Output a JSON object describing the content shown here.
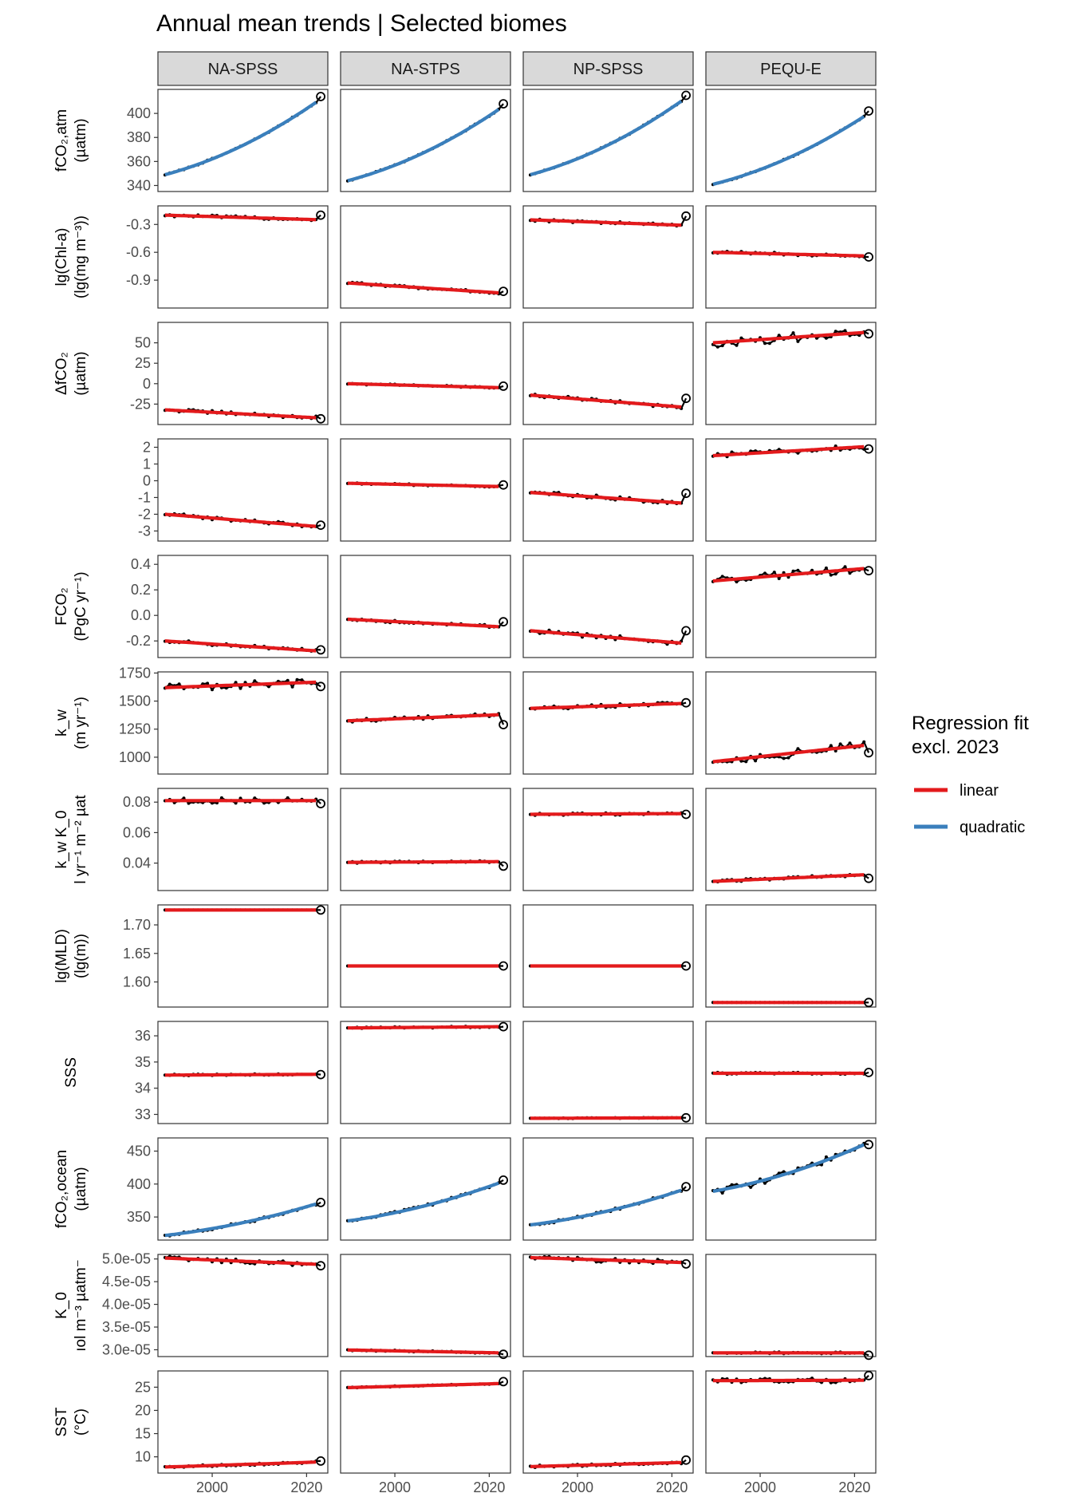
{
  "chart_data": {
    "type": "line",
    "title": "Annual mean trends | Selected biomes",
    "facets": [
      "NA-SPSS",
      "NA-STPS",
      "NP-SPSS",
      "PEQU-E"
    ],
    "x": {
      "range": [
        1988.5,
        2024.5
      ],
      "ticks": [
        2000,
        2020
      ],
      "tick_labels": [
        "2000",
        "2020"
      ]
    },
    "legend": {
      "title_lines": [
        "Regression fit",
        "excl. 2023"
      ],
      "items": [
        {
          "label": "linear",
          "color": "#e31a1c"
        },
        {
          "label": "quadratic",
          "color": "#3a7fbc"
        }
      ],
      "position": "right"
    },
    "colors": {
      "observed": "#000000",
      "linear": "#e31a1c",
      "quadratic": "#3a7fbc",
      "strip_fill": "#d9d9d9"
    },
    "rows": [
      {
        "id": "fco2atm",
        "ylabel_lines": [
          "fCO₂,atm",
          "(µatm)"
        ],
        "ylim": [
          335,
          420
        ],
        "ticks": [
          340,
          360,
          380,
          400
        ],
        "tick_labels": [
          "340",
          "360",
          "380",
          "400"
        ],
        "fit": "quadratic",
        "panels": [
          {
            "start": 349,
            "end": 412,
            "last": 414,
            "noise": 0.5
          },
          {
            "start": 344,
            "end": 406,
            "last": 408,
            "noise": 0.5
          },
          {
            "start": 349,
            "end": 413,
            "last": 415,
            "noise": 0.5
          },
          {
            "start": 341,
            "end": 400,
            "last": 402,
            "noise": 0.5
          }
        ]
      },
      {
        "id": "chla",
        "ylabel_lines": [
          "lg(Chl-a)",
          "(lg(mg m⁻³))"
        ],
        "ylim": [
          -1.2,
          -0.1
        ],
        "ticks": [
          -0.9,
          -0.6,
          -0.3
        ],
        "tick_labels": [
          "-0.9",
          "-0.6",
          "-0.3"
        ],
        "fit": "linear",
        "panels": [
          {
            "start": -0.2,
            "end": -0.25,
            "last": -0.2,
            "noise": 0.015
          },
          {
            "start": -0.93,
            "end": -1.04,
            "last": -1.02,
            "noise": 0.012
          },
          {
            "start": -0.25,
            "end": -0.31,
            "last": -0.21,
            "noise": 0.015
          },
          {
            "start": -0.6,
            "end": -0.64,
            "last": -0.65,
            "noise": 0.015
          }
        ]
      },
      {
        "id": "dfco2",
        "ylabel_lines": [
          "ΔfCO₂",
          "(µatm)"
        ],
        "ylim": [
          -50,
          75
        ],
        "ticks": [
          -25,
          0,
          25,
          50
        ],
        "tick_labels": [
          "-25",
          "0",
          "25",
          "50"
        ],
        "fit": "linear",
        "panels": [
          {
            "start": -32,
            "end": -42,
            "last": -43,
            "noise": 2
          },
          {
            "start": 0,
            "end": -5,
            "last": -3,
            "noise": 1
          },
          {
            "start": -14,
            "end": -29,
            "last": -18,
            "noise": 2
          },
          {
            "start": 50,
            "end": 63,
            "last": 61,
            "noise": 6
          }
        ]
      },
      {
        "id": "flux",
        "ylabel_lines": [],
        "ylim": [
          -3.6,
          2.5
        ],
        "ticks": [
          -3,
          -2,
          -1,
          0,
          1,
          2
        ],
        "tick_labels": [
          "-3",
          "-2",
          "-1",
          "0",
          "1",
          "2"
        ],
        "fit": "linear",
        "panels": [
          {
            "start": -2.0,
            "end": -2.75,
            "last": -2.65,
            "noise": 0.1
          },
          {
            "start": -0.15,
            "end": -0.35,
            "last": -0.25,
            "noise": 0.05
          },
          {
            "start": -0.7,
            "end": -1.35,
            "last": -0.75,
            "noise": 0.12
          },
          {
            "start": 1.5,
            "end": 2.05,
            "last": 1.9,
            "noise": 0.15
          }
        ]
      },
      {
        "id": "fco2",
        "ylabel_lines": [
          "FCO₂",
          "(PgC yr⁻¹)"
        ],
        "ylim": [
          -0.33,
          0.47
        ],
        "ticks": [
          -0.2,
          0.0,
          0.2,
          0.4
        ],
        "tick_labels": [
          "-0.2",
          "0.0",
          "0.2",
          "0.4"
        ],
        "fit": "linear",
        "panels": [
          {
            "start": -0.2,
            "end": -0.28,
            "last": -0.27,
            "noise": 0.012
          },
          {
            "start": -0.03,
            "end": -0.09,
            "last": -0.05,
            "noise": 0.01
          },
          {
            "start": -0.12,
            "end": -0.22,
            "last": -0.12,
            "noise": 0.018
          },
          {
            "start": 0.27,
            "end": 0.37,
            "last": 0.35,
            "noise": 0.03
          }
        ]
      },
      {
        "id": "kw",
        "ylabel_lines": [
          "k_w",
          "(m yr⁻¹)"
        ],
        "ylim": [
          850,
          1760
        ],
        "ticks": [
          1000,
          1250,
          1500,
          1750
        ],
        "tick_labels": [
          "1000",
          "1250",
          "1500",
          "1750"
        ],
        "fit": "linear",
        "panels": [
          {
            "start": 1620,
            "end": 1670,
            "last": 1630,
            "noise": 35
          },
          {
            "start": 1325,
            "end": 1380,
            "last": 1290,
            "noise": 15
          },
          {
            "start": 1435,
            "end": 1480,
            "last": 1485,
            "noise": 15
          },
          {
            "start": 960,
            "end": 1110,
            "last": 1040,
            "noise": 40
          }
        ]
      },
      {
        "id": "kwk0",
        "ylabel_lines": [
          "k_w K_0",
          "l yr⁻¹ m⁻² µat"
        ],
        "ylim": [
          0.022,
          0.089
        ],
        "ticks": [
          0.04,
          0.06,
          0.08
        ],
        "tick_labels": [
          "0.04",
          "0.06",
          "0.08"
        ],
        "fit": "linear",
        "panels": [
          {
            "start": 0.081,
            "end": 0.081,
            "last": 0.079,
            "noise": 0.0018
          },
          {
            "start": 0.0405,
            "end": 0.041,
            "last": 0.038,
            "noise": 0.0006
          },
          {
            "start": 0.072,
            "end": 0.0725,
            "last": 0.072,
            "noise": 0.0008
          },
          {
            "start": 0.028,
            "end": 0.0325,
            "last": 0.03,
            "noise": 0.0008
          }
        ]
      },
      {
        "id": "mld",
        "ylabel_lines": [
          "lg(MLD)",
          "(lg(m))"
        ],
        "ylim": [
          1.556,
          1.735
        ],
        "ticks": [
          1.6,
          1.65,
          1.7
        ],
        "tick_labels": [
          "1.60",
          "1.65",
          "1.70"
        ],
        "fit": "linear",
        "panels": [
          {
            "start": 1.726,
            "end": 1.726,
            "last": 1.726,
            "noise": 0
          },
          {
            "start": 1.628,
            "end": 1.628,
            "last": 1.628,
            "noise": 0
          },
          {
            "start": 1.628,
            "end": 1.628,
            "last": 1.628,
            "noise": 0
          },
          {
            "start": 1.564,
            "end": 1.564,
            "last": 1.564,
            "noise": 0
          }
        ]
      },
      {
        "id": "sss",
        "ylabel_lines": [
          "SSS"
        ],
        "ylim": [
          32.65,
          36.55
        ],
        "ticks": [
          33,
          34,
          35,
          36
        ],
        "tick_labels": [
          "33",
          "34",
          "35",
          "36"
        ],
        "fit": "linear",
        "panels": [
          {
            "start": 34.5,
            "end": 34.53,
            "last": 34.52,
            "noise": 0.03
          },
          {
            "start": 36.3,
            "end": 36.35,
            "last": 36.35,
            "noise": 0.03
          },
          {
            "start": 32.85,
            "end": 32.87,
            "last": 32.87,
            "noise": 0.015
          },
          {
            "start": 34.57,
            "end": 34.57,
            "last": 34.6,
            "noise": 0.05
          }
        ]
      },
      {
        "id": "fco2ocean",
        "ylabel_lines": [
          "fCO₂,ocean",
          "(µatm)"
        ],
        "ylim": [
          315,
          470
        ],
        "ticks": [
          350,
          400,
          450
        ],
        "tick_labels": [
          "350",
          "400",
          "450"
        ],
        "fit": "quadratic",
        "panels": [
          {
            "start": 322,
            "end": 372,
            "last": 372,
            "noise": 2
          },
          {
            "start": 344,
            "end": 404,
            "last": 406,
            "noise": 2
          },
          {
            "start": 338,
            "end": 393,
            "last": 396,
            "noise": 2
          },
          {
            "start": 389,
            "end": 463,
            "last": 460,
            "noise": 6
          }
        ]
      },
      {
        "id": "k0",
        "ylabel_lines": [
          "K_0",
          "ıol m⁻³ µatm⁻"
        ],
        "ylim": [
          2.85e-05,
          5.1e-05
        ],
        "ticks": [
          3e-05,
          3.5e-05,
          4e-05,
          4.5e-05,
          5e-05
        ],
        "tick_labels": [
          "3.0e-05",
          "3.5e-05",
          "4.0e-05",
          "4.5e-05",
          "5.0e-05"
        ],
        "fit": "linear",
        "panels": [
          {
            "start": 5.02e-05,
            "end": 4.88e-05,
            "last": 4.85e-05,
            "noise": 5e-07
          },
          {
            "start": 2.995e-05,
            "end": 2.93e-05,
            "last": 2.9e-05,
            "noise": 1.5e-07
          },
          {
            "start": 5.03e-05,
            "end": 4.92e-05,
            "last": 4.89e-05,
            "noise": 5e-07
          },
          {
            "start": 2.93e-05,
            "end": 2.93e-05,
            "last": 2.88e-05,
            "noise": 2e-07
          }
        ]
      },
      {
        "id": "sst",
        "ylabel_lines": [
          "SST",
          "(°C)"
        ],
        "ylim": [
          6.5,
          28.5
        ],
        "ticks": [
          10,
          15,
          20,
          25
        ],
        "tick_labels": [
          "10",
          "15",
          "20",
          "25"
        ],
        "fit": "linear",
        "panels": [
          {
            "start": 7.8,
            "end": 8.9,
            "last": 9.1,
            "noise": 0.25
          },
          {
            "start": 24.9,
            "end": 25.8,
            "last": 26.2,
            "noise": 0.1
          },
          {
            "start": 7.9,
            "end": 8.8,
            "last": 9.3,
            "noise": 0.25
          },
          {
            "start": 26.4,
            "end": 26.5,
            "last": 27.5,
            "noise": 0.5
          }
        ]
      }
    ]
  }
}
